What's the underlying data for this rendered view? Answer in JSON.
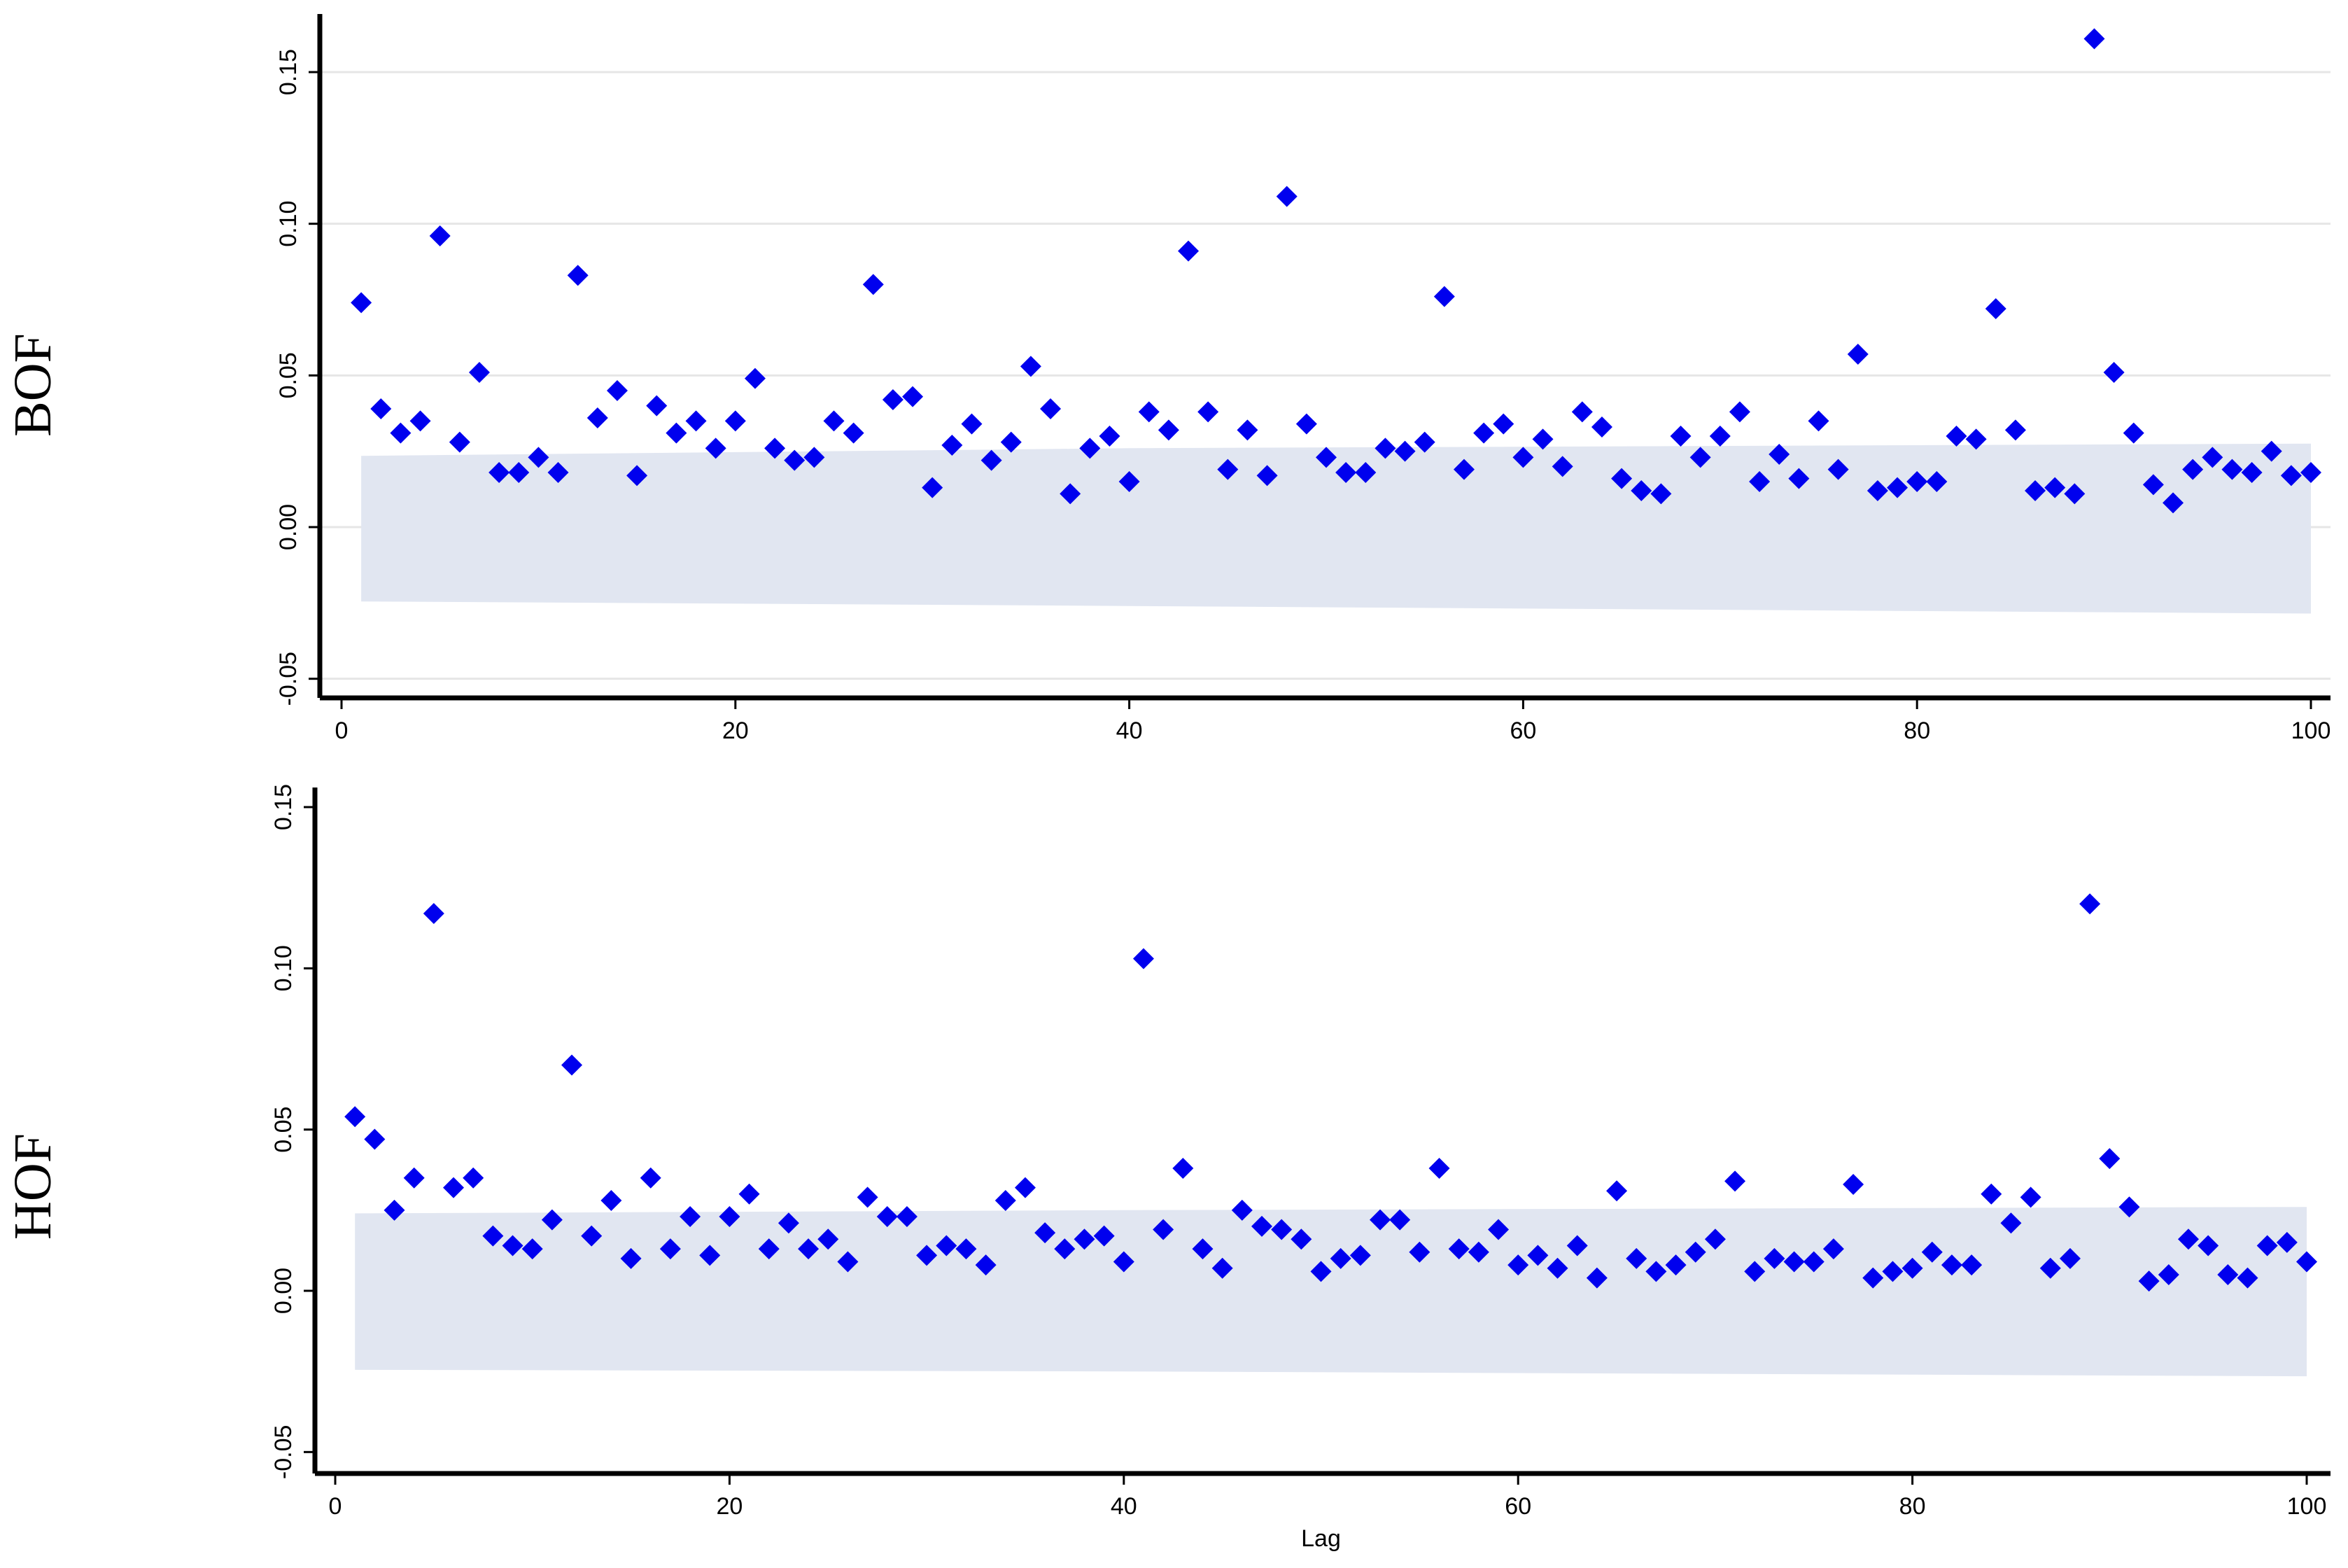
{
  "colors": {
    "marker": "#0000ee",
    "band": "#e1e6f1",
    "grid": "#e6e6e6",
    "axis": "#000000"
  },
  "chart_data": [
    {
      "type": "scatter",
      "panel_label": "BOF",
      "xlabel": "",
      "ylabel": "",
      "xlim": [
        -1,
        101
      ],
      "ylim": [
        -0.055,
        0.165
      ],
      "xticks": [
        0,
        20,
        40,
        60,
        80,
        100
      ],
      "yticks": [
        -0.05,
        0.0,
        0.05,
        0.1,
        0.15
      ],
      "ytick_labels": [
        "-0.05",
        "0.00",
        "0.05",
        "0.10",
        "0.15"
      ],
      "grid": true,
      "marker": "diamond",
      "confidence_band": {
        "x": [
          1,
          40,
          100
        ],
        "upper": [
          0.0235,
          0.026,
          0.0275
        ],
        "lower": [
          -0.0245,
          -0.026,
          -0.0285
        ]
      },
      "x": [
        1,
        2,
        3,
        4,
        5,
        6,
        7,
        8,
        9,
        10,
        11,
        12,
        13,
        14,
        15,
        16,
        17,
        18,
        19,
        20,
        21,
        22,
        23,
        24,
        25,
        26,
        27,
        28,
        29,
        30,
        31,
        32,
        33,
        34,
        35,
        36,
        37,
        38,
        39,
        40,
        41,
        42,
        43,
        44,
        45,
        46,
        47,
        48,
        49,
        50,
        51,
        52,
        53,
        54,
        55,
        56,
        57,
        58,
        59,
        60,
        61,
        62,
        63,
        64,
        65,
        66,
        67,
        68,
        69,
        70,
        71,
        72,
        73,
        74,
        75,
        76,
        77,
        78,
        79,
        80,
        81,
        82,
        83,
        84,
        85,
        86,
        87,
        88,
        89,
        90,
        91,
        92,
        93,
        94,
        95,
        96,
        97,
        98,
        99,
        100
      ],
      "y": [
        0.074,
        0.039,
        0.031,
        0.035,
        0.096,
        0.028,
        0.051,
        0.018,
        0.018,
        0.023,
        0.018,
        0.083,
        0.036,
        0.045,
        0.017,
        0.04,
        0.031,
        0.035,
        0.026,
        0.035,
        0.049,
        0.026,
        0.022,
        0.023,
        0.035,
        0.031,
        0.08,
        0.042,
        0.043,
        0.013,
        0.027,
        0.034,
        0.022,
        0.028,
        0.053,
        0.039,
        0.011,
        0.026,
        0.03,
        0.015,
        0.038,
        0.032,
        0.091,
        0.038,
        0.019,
        0.032,
        0.017,
        0.109,
        0.034,
        0.023,
        0.018,
        0.018,
        0.026,
        0.025,
        0.028,
        0.076,
        0.019,
        0.031,
        0.034,
        0.023,
        0.029,
        0.02,
        0.038,
        0.033,
        0.016,
        0.012,
        0.011,
        0.03,
        0.023,
        0.03,
        0.038,
        0.015,
        0.024,
        0.016,
        0.035,
        0.019,
        0.057,
        0.012,
        0.013,
        0.015,
        0.015,
        0.03,
        0.029,
        0.072,
        0.032,
        0.012,
        0.013,
        0.011,
        0.161,
        0.051,
        0.031,
        0.014,
        0.008,
        0.019,
        0.023,
        0.019,
        0.018,
        0.025,
        0.017,
        0.018
      ]
    },
    {
      "type": "scatter",
      "panel_label": "HOF",
      "xlabel": "Lag",
      "ylabel": "",
      "xlim": [
        -1,
        101
      ],
      "ylim": [
        -0.055,
        0.16
      ],
      "xticks": [
        0,
        20,
        40,
        60,
        80,
        100
      ],
      "yticks": [
        -0.05,
        0.0,
        0.05,
        0.1,
        0.15
      ],
      "ytick_labels": [
        "-0.05",
        "0.00",
        "0.05",
        "0.10",
        "0.15"
      ],
      "grid": false,
      "marker": "diamond",
      "confidence_band": {
        "x": [
          1,
          40,
          100
        ],
        "upper": [
          0.024,
          0.025,
          0.026
        ],
        "lower": [
          -0.0245,
          -0.025,
          -0.0265
        ]
      },
      "x": [
        1,
        2,
        3,
        4,
        5,
        6,
        7,
        8,
        9,
        10,
        11,
        12,
        13,
        14,
        15,
        16,
        17,
        18,
        19,
        20,
        21,
        22,
        23,
        24,
        25,
        26,
        27,
        28,
        29,
        30,
        31,
        32,
        33,
        34,
        35,
        36,
        37,
        38,
        39,
        40,
        41,
        42,
        43,
        44,
        45,
        46,
        47,
        48,
        49,
        50,
        51,
        52,
        53,
        54,
        55,
        56,
        57,
        58,
        59,
        60,
        61,
        62,
        63,
        64,
        65,
        66,
        67,
        68,
        69,
        70,
        71,
        72,
        73,
        74,
        75,
        76,
        77,
        78,
        79,
        80,
        81,
        82,
        83,
        84,
        85,
        86,
        87,
        88,
        89,
        90,
        91,
        92,
        93,
        94,
        95,
        96,
        97,
        98,
        99,
        100
      ],
      "y": [
        0.054,
        0.047,
        0.025,
        0.035,
        0.117,
        0.032,
        0.035,
        0.017,
        0.014,
        0.013,
        0.022,
        0.07,
        0.017,
        0.028,
        0.01,
        0.035,
        0.013,
        0.023,
        0.011,
        0.023,
        0.03,
        0.013,
        0.021,
        0.013,
        0.016,
        0.009,
        0.029,
        0.023,
        0.023,
        0.011,
        0.014,
        0.013,
        0.008,
        0.028,
        0.032,
        0.018,
        0.013,
        0.016,
        0.017,
        0.009,
        0.103,
        0.019,
        0.038,
        0.013,
        0.007,
        0.025,
        0.02,
        0.019,
        0.016,
        0.006,
        0.01,
        0.011,
        0.022,
        0.022,
        0.012,
        0.038,
        0.013,
        0.012,
        0.019,
        0.008,
        0.011,
        0.007,
        0.014,
        0.004,
        0.031,
        0.01,
        0.006,
        0.008,
        0.012,
        0.016,
        0.034,
        0.006,
        0.01,
        0.009,
        0.009,
        0.013,
        0.033,
        0.004,
        0.006,
        0.007,
        0.012,
        0.008,
        0.008,
        0.03,
        0.021,
        0.029,
        0.007,
        0.01,
        0.12,
        0.041,
        0.026,
        0.003,
        0.005,
        0.016,
        0.014,
        0.005,
        0.004,
        0.014,
        0.015,
        0.009
      ]
    }
  ]
}
